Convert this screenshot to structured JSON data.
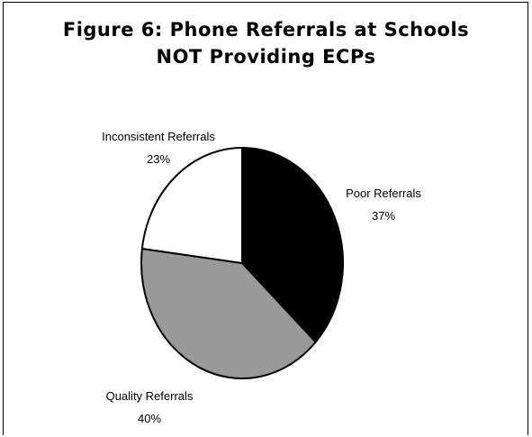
{
  "title": [
    "Figure 6: Phone Referrals at Schools",
    "NOT Providing ECPs"
  ],
  "chart_data": {
    "type": "pie",
    "title": "Figure 6: Phone Referrals at Schools NOT Providing ECPs",
    "slices": [
      {
        "label": "Poor Referrals",
        "value": 37,
        "value_label": "37%",
        "color": "#000000"
      },
      {
        "label": "Quality Referrals",
        "value": 40,
        "value_label": "40%",
        "color": "#999999"
      },
      {
        "label": "Inconsistent Referrals",
        "value": 23,
        "value_label": "23%",
        "color": "#ffffff"
      }
    ],
    "start_angle_deg": 0,
    "direction": "clockwise",
    "legend": "none"
  }
}
